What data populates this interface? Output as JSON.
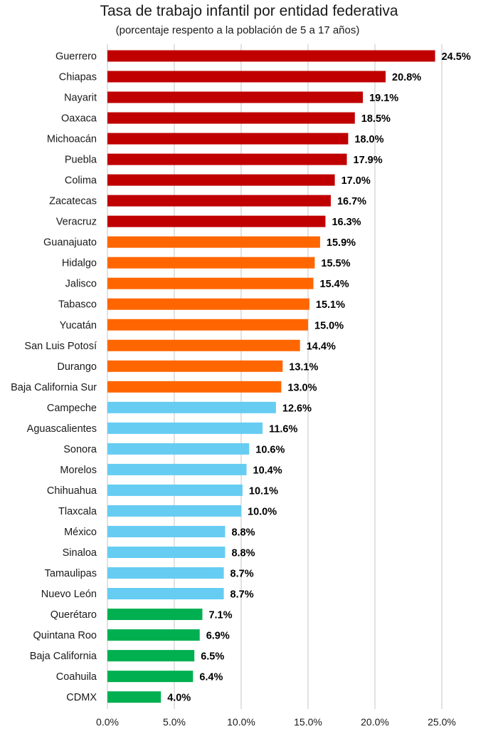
{
  "chart_data": {
    "type": "bar",
    "orientation": "horizontal",
    "title": "Tasa de trabajo infantil por entidad federativa",
    "subtitle": "(porcentaje respento a la población de 5 a 17 años)",
    "xlabel": "",
    "ylabel": "",
    "xlim": [
      0,
      25
    ],
    "x_ticks": [
      "0.0%",
      "5.0%",
      "10.0%",
      "15.0%",
      "20.0%",
      "25.0%"
    ],
    "grid": "vertical",
    "legend": "none",
    "value_unit": "%",
    "categories": [
      "Guerrero",
      "Chiapas",
      "Nayarit",
      "Oaxaca",
      "Michoacán",
      "Puebla",
      "Colima",
      "Zacatecas",
      "Veracruz",
      "Guanajuato",
      "Hidalgo",
      "Jalisco",
      "Tabasco",
      "Yucatán",
      "San Luis Potosí",
      "Durango",
      "Baja California Sur",
      "Campeche",
      "Aguascalientes",
      "Sonora",
      "Morelos",
      "Chihuahua",
      "Tlaxcala",
      "México",
      "Sinaloa",
      "Tamaulipas",
      "Nuevo León",
      "Querétaro",
      "Quintana Roo",
      "Baja California",
      "Coahuila",
      "CDMX"
    ],
    "values": [
      24.5,
      20.8,
      19.1,
      18.5,
      18.0,
      17.9,
      17.0,
      16.7,
      16.3,
      15.9,
      15.5,
      15.4,
      15.1,
      15.0,
      14.4,
      13.1,
      13.0,
      12.6,
      11.6,
      10.6,
      10.4,
      10.1,
      10.0,
      8.8,
      8.8,
      8.7,
      8.7,
      7.1,
      6.9,
      6.5,
      6.4,
      4.0
    ],
    "labels": [
      "24.5%",
      "20.8%",
      "19.1%",
      "18.5%",
      "18.0%",
      "17.9%",
      "17.0%",
      "16.7%",
      "16.3%",
      "15.9%",
      "15.5%",
      "15.4%",
      "15.1%",
      "15.0%",
      "14.4%",
      "13.1%",
      "13.0%",
      "12.6%",
      "11.6%",
      "10.6%",
      "10.4%",
      "10.1%",
      "10.0%",
      "8.8%",
      "8.8%",
      "8.7%",
      "8.7%",
      "7.1%",
      "6.9%",
      "6.5%",
      "6.4%",
      "4.0%"
    ],
    "color_groups": [
      {
        "color": "#c00000",
        "count": 9
      },
      {
        "color": "#ff6600",
        "count": 8
      },
      {
        "color": "#66ccf2",
        "count": 10
      },
      {
        "color": "#00b050",
        "count": 5
      }
    ],
    "colors": {
      "gridline": "#d9d9d9",
      "axis_text": "#1a1a1a"
    }
  }
}
